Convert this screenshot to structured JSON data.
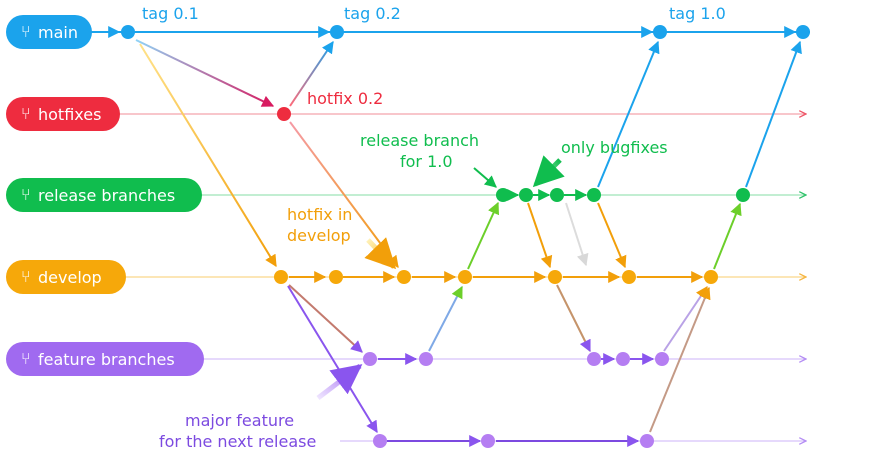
{
  "colors": {
    "main": "#1ba3ec",
    "hotfixes": "#ee2c3f",
    "release": "#10bd4e",
    "develop": "#f6a80a",
    "feature": "#a06af0",
    "feature_dark": "#7c4ae0"
  },
  "branches": [
    {
      "id": "main",
      "label": "main",
      "color_key": "main"
    },
    {
      "id": "hotfixes",
      "label": "hotfixes",
      "color_key": "hotfixes"
    },
    {
      "id": "release",
      "label": "release branches",
      "color_key": "release"
    },
    {
      "id": "develop",
      "label": "develop",
      "color_key": "develop"
    },
    {
      "id": "feature",
      "label": "feature branches",
      "color_key": "feature"
    }
  ],
  "annotations": {
    "tag_01": "tag 0.1",
    "tag_02": "tag 0.2",
    "tag_10": "tag 1.0",
    "hotfix_02": "hotfix 0.2",
    "release_branch_line1": "release branch",
    "release_branch_line2": "for 1.0",
    "only_bugfixes": "only bugfixes",
    "hotfix_in_line1": "hotfix in",
    "hotfix_in_line2": "develop",
    "major_feature_line1": "major feature",
    "major_feature_line2": "for the next release"
  }
}
